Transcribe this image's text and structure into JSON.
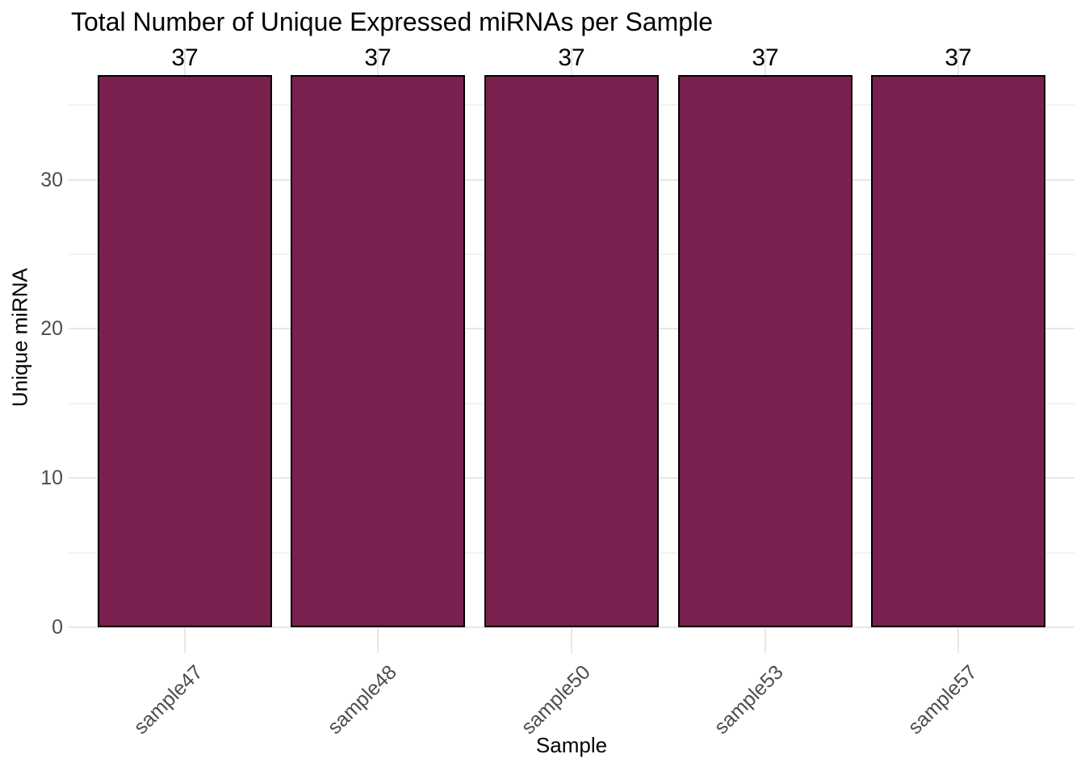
{
  "chart_data": {
    "type": "bar",
    "title": "Total Number of Unique Expressed miRNAs per Sample",
    "xlabel": "Sample",
    "ylabel": "Unique miRNA",
    "categories": [
      "sample47",
      "sample48",
      "sample50",
      "sample53",
      "sample57"
    ],
    "values": [
      37,
      37,
      37,
      37,
      37
    ],
    "bar_labels": [
      "37",
      "37",
      "37",
      "37",
      "37"
    ],
    "y_ticks": [
      0,
      10,
      20,
      30
    ],
    "y_minor_ticks": [
      5,
      15,
      25,
      35
    ],
    "ylim": [
      0,
      38.85
    ],
    "grid": "on",
    "legend": "none",
    "colors": {
      "bar_fill": "#7A204E",
      "bar_stroke": "#000000",
      "grid_major": "#E7E7E7",
      "grid_minor": "#F3F3F3",
      "axis_tick": "#E7E7E7",
      "tick_label": "#4D4D4D",
      "text": "#000000",
      "background": "#FFFFFF"
    }
  }
}
